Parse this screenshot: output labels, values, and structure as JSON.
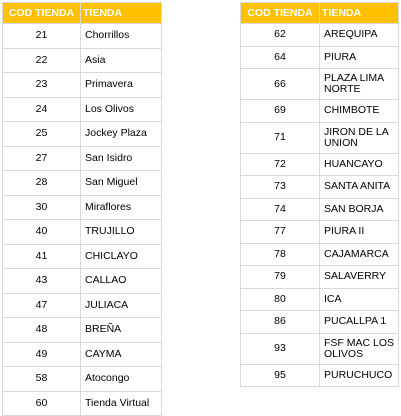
{
  "headers": {
    "code": "COD TIENDA",
    "name": "TIENDA"
  },
  "colors": {
    "header_bg": "#ffc000",
    "header_text": "#ffffff",
    "grid": "#d9d9d9"
  },
  "left_rows": [
    {
      "code": "21",
      "name": "Chorrillos"
    },
    {
      "code": "22",
      "name": "Asia"
    },
    {
      "code": "23",
      "name": "Primavera"
    },
    {
      "code": "24",
      "name": "Los Olivos"
    },
    {
      "code": "25",
      "name": "Jockey Plaza"
    },
    {
      "code": "27",
      "name": "San Isidro"
    },
    {
      "code": "28",
      "name": "San Miguel"
    },
    {
      "code": "30",
      "name": "Miraflores"
    },
    {
      "code": "40",
      "name": "TRUJILLO"
    },
    {
      "code": "41",
      "name": "CHICLAYO"
    },
    {
      "code": "43",
      "name": "CALLAO"
    },
    {
      "code": "47",
      "name": "JULIACA"
    },
    {
      "code": "48",
      "name": "BREÑA"
    },
    {
      "code": "49",
      "name": "CAYMA"
    },
    {
      "code": "58",
      "name": "Atocongo"
    },
    {
      "code": "60",
      "name": "Tienda Virtual"
    }
  ],
  "right_rows": [
    {
      "code": "62",
      "name": "AREQUIPA"
    },
    {
      "code": "64",
      "name": "PIURA"
    },
    {
      "code": "66",
      "name": "PLAZA LIMA NORTE"
    },
    {
      "code": "69",
      "name": "CHIMBOTE"
    },
    {
      "code": "71",
      "name": "JIRON DE LA UNION"
    },
    {
      "code": "72",
      "name": "HUANCAYO"
    },
    {
      "code": "73",
      "name": "SANTA ANITA"
    },
    {
      "code": "74",
      "name": "SAN BORJA"
    },
    {
      "code": "77",
      "name": "PIURA II"
    },
    {
      "code": "78",
      "name": "CAJAMARCA"
    },
    {
      "code": "79",
      "name": "SALAVERRY"
    },
    {
      "code": "80",
      "name": "ICA"
    },
    {
      "code": "86",
      "name": "PUCALLPA 1"
    },
    {
      "code": "93",
      "name": "FSF MAC LOS OLIVOS"
    },
    {
      "code": "95",
      "name": "PURUCHUCO"
    }
  ]
}
